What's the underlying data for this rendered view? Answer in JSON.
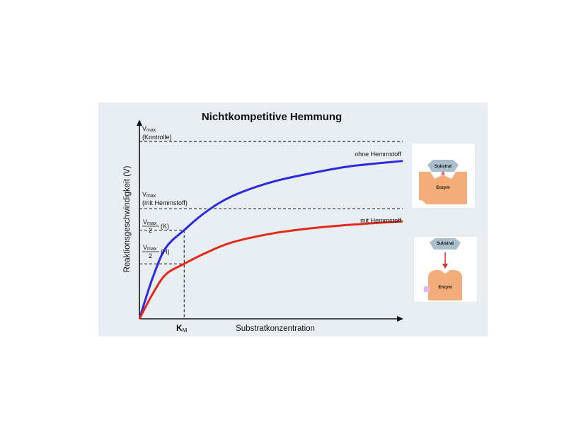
{
  "chart_data": {
    "type": "line",
    "title": "Nichtkompetitive Hemmung",
    "xlabel": "Substratkonzentration",
    "ylabel": "Reaktionsgeschwindigkeit (V)",
    "x_tick_label": {
      "main": "K",
      "sub": "M"
    },
    "xlim": [
      0,
      10
    ],
    "ylim": [
      0,
      1.1
    ],
    "km": 1.7,
    "series": [
      {
        "name": "ohne Hemmstoff",
        "color": "#2a2ae0",
        "vmax": 1.0,
        "x": [
          0,
          0.5,
          1,
          1.7,
          2.5,
          3.5,
          5,
          6.5,
          8,
          10
        ],
        "y": [
          0,
          0.23,
          0.4,
          0.5,
          0.6,
          0.69,
          0.77,
          0.82,
          0.86,
          0.89
        ]
      },
      {
        "name": "mit Hemmstoff",
        "color": "#e32a1a",
        "vmax": 0.62,
        "x": [
          0,
          0.5,
          1,
          1.7,
          2.5,
          3.5,
          5,
          6.5,
          8,
          10
        ],
        "y": [
          0,
          0.14,
          0.25,
          0.31,
          0.37,
          0.43,
          0.48,
          0.51,
          0.53,
          0.55
        ]
      }
    ],
    "annotations": {
      "vmax_kontrolle": {
        "main": "V",
        "sub": "max",
        "second_line": "(Kontrolle)"
      },
      "vmax_hemm": {
        "main": "V",
        "sub": "max",
        "second_line": "(mit Hemmstoff)"
      },
      "half_k": {
        "num_main": "V",
        "num_sub": "max",
        "den": "2",
        "tag": "(K)"
      },
      "half_h": {
        "num_main": "V",
        "num_sub": "max",
        "den": "2",
        "tag": "(H)"
      }
    },
    "legend_placement": "inline-right",
    "grid": false
  },
  "insets": {
    "top": {
      "substrate": "Substrat",
      "enzyme": "Enzym",
      "substrate_color": "#a9bfcc",
      "enzyme_color": "#f4ad79",
      "site_color": "#e4567a"
    },
    "bottom": {
      "substrate": "Substrat",
      "enzyme": "Enzym",
      "substrate_color": "#a9bfcc",
      "enzyme_color": "#f4ad79",
      "arrow_color": "#d2322d",
      "inhibitor_color": "#e6b7e6"
    }
  }
}
